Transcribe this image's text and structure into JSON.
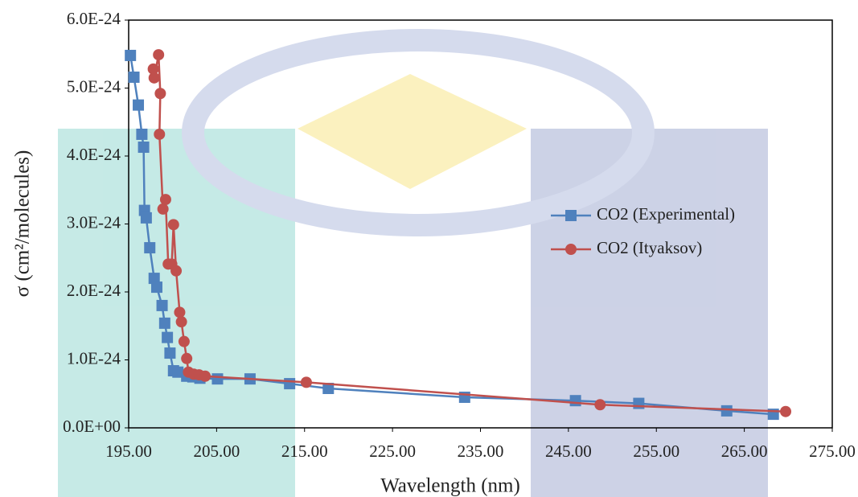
{
  "chart_data": {
    "type": "line",
    "x_label": "Wavelength (nm)",
    "y_label": "σ (cm²/molecules)",
    "xlim": [
      195,
      275
    ],
    "xticks": [
      {
        "value": 195,
        "label": "195.00"
      },
      {
        "value": 205,
        "label": "205.00"
      },
      {
        "value": 215,
        "label": "215.00"
      },
      {
        "value": 225,
        "label": "225.00"
      },
      {
        "value": 235,
        "label": "235.00"
      },
      {
        "value": 245,
        "label": "245.00"
      },
      {
        "value": 255,
        "label": "255.00"
      },
      {
        "value": 265,
        "label": "265.00"
      },
      {
        "value": 275,
        "label": "275.00"
      }
    ],
    "ylim": [
      0,
      6e-24
    ],
    "yticks": [
      {
        "value": 0,
        "label": "0.0E+00"
      },
      {
        "value": 1e-24,
        "label": "1.0E-24"
      },
      {
        "value": 2e-24,
        "label": "2.0E-24"
      },
      {
        "value": 3e-24,
        "label": "3.0E-24"
      },
      {
        "value": 4e-24,
        "label": "4.0E-24"
      },
      {
        "value": 5e-24,
        "label": "5.0E-24"
      },
      {
        "value": 6e-24,
        "label": "6.0E-24"
      }
    ],
    "legend_position": "right",
    "series": [
      {
        "name": "CO2 (Experimental)",
        "color": "#4f81bd",
        "marker": "square",
        "x": [
          195.2,
          195.6,
          196.1,
          196.5,
          196.7,
          196.8,
          197.0,
          197.4,
          197.9,
          198.2,
          198.8,
          199.1,
          199.4,
          199.7,
          200.1,
          200.6,
          201.6,
          202.3,
          203.1,
          205.1,
          208.8,
          213.3,
          217.7,
          233.2,
          245.8,
          253.0,
          263.0,
          268.3
        ],
        "values": [
          5.48e-24,
          5.16e-24,
          4.75e-24,
          4.32e-24,
          4.13e-24,
          3.2e-24,
          3.09e-24,
          2.65e-24,
          2.2e-24,
          2.07e-24,
          1.8e-24,
          1.54e-24,
          1.33e-24,
          1.1e-24,
          8.4e-25,
          8.2e-25,
          7.6e-25,
          7.5e-25,
          7.3e-25,
          7.2e-25,
          7.2e-25,
          6.5e-25,
          5.8e-25,
          4.5e-25,
          4e-25,
          3.6e-25,
          2.5e-25,
          2e-25
        ]
      },
      {
        "name": "CO2 (Ityaksov)",
        "color": "#c0504d",
        "marker": "circle",
        "x": [
          197.8,
          197.9,
          198.4,
          198.6,
          198.5,
          198.9,
          199.2,
          199.5,
          199.9,
          200.1,
          200.4,
          200.8,
          201.0,
          201.3,
          201.6,
          201.8,
          202.4,
          203.0,
          203.7,
          215.2,
          248.6,
          269.7
        ],
        "values": [
          5.28e-24,
          5.15e-24,
          5.49e-24,
          4.92e-24,
          4.32e-24,
          3.22e-24,
          3.36e-24,
          2.41e-24,
          2.41e-24,
          2.99e-24,
          2.31e-24,
          1.7e-24,
          1.56e-24,
          1.27e-24,
          1.02e-24,
          8.2e-25,
          7.9e-25,
          7.8e-25,
          7.6e-25,
          6.7e-25,
          3.4e-25,
          2.4e-25
        ]
      }
    ]
  }
}
